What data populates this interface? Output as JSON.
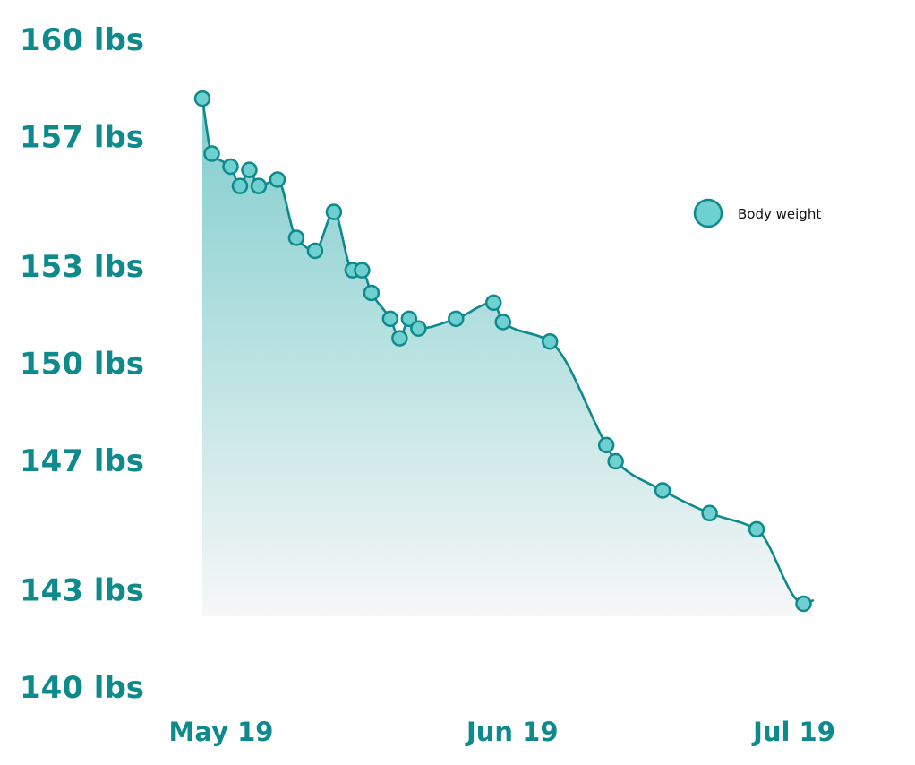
{
  "colors": {
    "accent": "#0e8a8c",
    "marker_fill": "#6fd0d0",
    "area_top": "#7fcdcd",
    "area_bottom": "#f7f7f7"
  },
  "chart_data": {
    "type": "area",
    "title": "",
    "xlabel": "",
    "ylabel": "",
    "y_unit": "lbs",
    "ylim": [
      140,
      160
    ],
    "y_ticks": [
      140,
      143,
      147,
      150,
      153,
      157,
      160
    ],
    "y_tick_labels": [
      "140 lbs",
      "143 lbs",
      "147 lbs",
      "150 lbs",
      "153 lbs",
      "157 lbs",
      "160 lbs"
    ],
    "xlim": [
      "2019-05-19",
      "2019-07-19"
    ],
    "x_ticks": [
      "2019-05-19",
      "2019-06-19",
      "2019-07-19"
    ],
    "x_tick_labels": [
      "May 19",
      "Jun 19",
      "Jul 19"
    ],
    "grid": false,
    "legend": {
      "position": "right",
      "entries": [
        "Body weight"
      ]
    },
    "series": [
      {
        "name": "Body weight",
        "x": [
          "2019-05-17",
          "2019-05-18",
          "2019-05-20",
          "2019-05-21",
          "2019-05-22",
          "2019-05-23",
          "2019-05-25",
          "2019-05-27",
          "2019-05-29",
          "2019-05-31",
          "2019-06-02",
          "2019-06-03",
          "2019-06-04",
          "2019-06-06",
          "2019-06-07",
          "2019-06-08",
          "2019-06-09",
          "2019-06-13",
          "2019-06-17",
          "2019-06-18",
          "2019-06-23",
          "2019-06-29",
          "2019-06-30",
          "2019-07-05",
          "2019-07-10",
          "2019-07-15",
          "2019-07-20"
        ],
        "values": [
          158.2,
          156.5,
          156.1,
          155.5,
          156.0,
          155.5,
          155.7,
          153.9,
          153.5,
          154.7,
          152.9,
          152.9,
          152.2,
          151.4,
          150.8,
          151.4,
          151.1,
          151.4,
          151.9,
          151.3,
          150.7,
          147.5,
          147.0,
          146.1,
          145.4,
          144.9,
          142.6
        ],
        "line_end": {
          "x": "2019-07-21",
          "value": 142.7
        }
      }
    ]
  }
}
